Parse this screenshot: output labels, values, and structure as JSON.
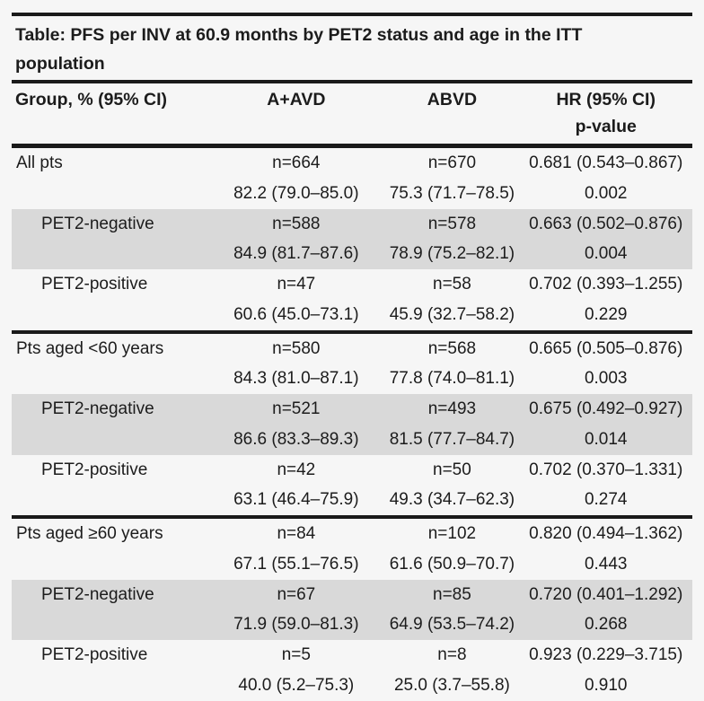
{
  "title": {
    "line1": "Table: PFS per INV at 60.9 months by PET2 status and age in the ITT",
    "line2": "population"
  },
  "columns": {
    "group": "Group, % (95% CI)",
    "a_avd": "A+AVD",
    "abvd": "ABVD",
    "hr": "HR (95% CI)",
    "p_value": "p-value"
  },
  "colors": {
    "shade": "#d9d9d9",
    "rule": "#1a1a1a",
    "text": "#1c1c1c",
    "background": "#f6f6f6"
  },
  "rows": [
    {
      "group": "All pts",
      "indent": false,
      "shaded": false,
      "section_start": false,
      "a_avd_n": "n=664",
      "abvd_n": "n=670",
      "hr_ci": "0.681 (0.543–0.867)",
      "a_avd_pct": "82.2 (79.0–85.0)",
      "abvd_pct": "75.3 (71.7–78.5)",
      "p_value": "0.002"
    },
    {
      "group": "PET2-negative",
      "indent": true,
      "shaded": true,
      "section_start": false,
      "a_avd_n": "n=588",
      "abvd_n": "n=578",
      "hr_ci": "0.663 (0.502–0.876)",
      "a_avd_pct": "84.9 (81.7–87.6)",
      "abvd_pct": "78.9 (75.2–82.1)",
      "p_value": "0.004"
    },
    {
      "group": "PET2-positive",
      "indent": true,
      "shaded": false,
      "section_start": false,
      "a_avd_n": "n=47",
      "abvd_n": "n=58",
      "hr_ci": "0.702 (0.393–1.255)",
      "a_avd_pct": "60.6 (45.0–73.1)",
      "abvd_pct": "45.9 (32.7–58.2)",
      "p_value": "0.229"
    },
    {
      "group": "Pts aged <60 years",
      "indent": false,
      "shaded": false,
      "section_start": true,
      "a_avd_n": "n=580",
      "abvd_n": "n=568",
      "hr_ci": "0.665 (0.505–0.876)",
      "a_avd_pct": "84.3 (81.0–87.1)",
      "abvd_pct": "77.8 (74.0–81.1)",
      "p_value": "0.003"
    },
    {
      "group": "PET2-negative",
      "indent": true,
      "shaded": true,
      "section_start": false,
      "a_avd_n": "n=521",
      "abvd_n": "n=493",
      "hr_ci": "0.675 (0.492–0.927)",
      "a_avd_pct": "86.6 (83.3–89.3)",
      "abvd_pct": "81.5 (77.7–84.7)",
      "p_value": "0.014"
    },
    {
      "group": "PET2-positive",
      "indent": true,
      "shaded": false,
      "section_start": false,
      "a_avd_n": "n=42",
      "abvd_n": "n=50",
      "hr_ci": "0.702 (0.370–1.331)",
      "a_avd_pct": "63.1 (46.4–75.9)",
      "abvd_pct": "49.3 (34.7–62.3)",
      "p_value": "0.274"
    },
    {
      "group": "Pts aged ≥60 years",
      "indent": false,
      "shaded": false,
      "section_start": true,
      "a_avd_n": "n=84",
      "abvd_n": "n=102",
      "hr_ci": "0.820 (0.494–1.362)",
      "a_avd_pct": "67.1 (55.1–76.5)",
      "abvd_pct": "61.6 (50.9–70.7)",
      "p_value": "0.443"
    },
    {
      "group": "PET2-negative",
      "indent": true,
      "shaded": true,
      "section_start": false,
      "a_avd_n": "n=67",
      "abvd_n": "n=85",
      "hr_ci": "0.720 (0.401–1.292)",
      "a_avd_pct": "71.9 (59.0–81.3)",
      "abvd_pct": "64.9 (53.5–74.2)",
      "p_value": "0.268"
    },
    {
      "group": "PET2-positive",
      "indent": true,
      "shaded": false,
      "section_start": false,
      "a_avd_n": "n=5",
      "abvd_n": "n=8",
      "hr_ci": "0.923 (0.229–3.715)",
      "a_avd_pct": "40.0 (5.2–75.3)",
      "abvd_pct": "25.0 (3.7–55.8)",
      "p_value": "0.910"
    }
  ]
}
